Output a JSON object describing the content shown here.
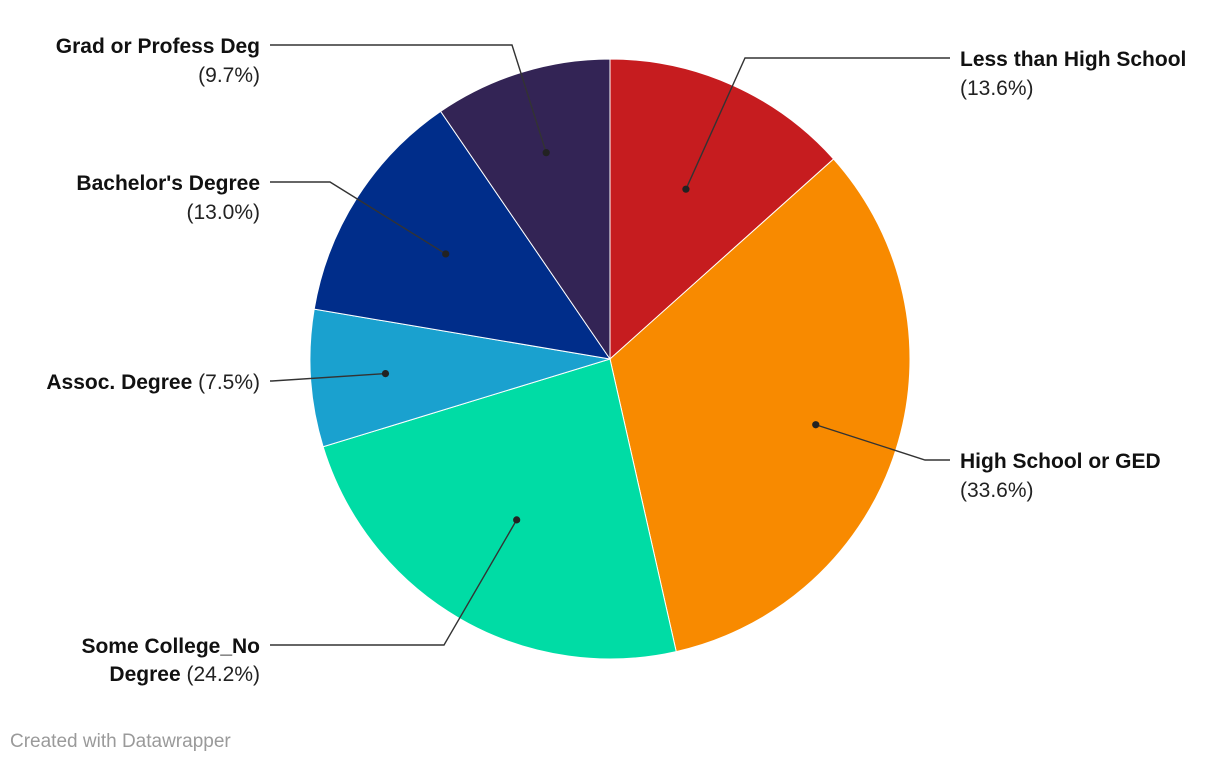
{
  "chart_data": {
    "type": "pie",
    "start_angle_deg": 0,
    "direction": "clockwise",
    "slices": [
      {
        "label": "Less than High School",
        "value": 13.6,
        "pct_text": "(13.6%)",
        "color": "#c61c1f"
      },
      {
        "label": "High School or GED",
        "value": 33.6,
        "pct_text": "(33.6%)",
        "color": "#f88a00"
      },
      {
        "label": "Some College_No Degree",
        "value": 24.2,
        "pct_text": "(24.2%)",
        "color": "#00dca5"
      },
      {
        "label": "Assoc. Degree",
        "value": 7.5,
        "pct_text": "(7.5%)",
        "color": "#1aa1cf"
      },
      {
        "label": "Bachelor's Degree",
        "value": 13.0,
        "pct_text": "(13.0%)",
        "color": "#002d8a"
      },
      {
        "label": "Grad or Profess Deg",
        "value": 9.7,
        "pct_text": "(9.7%)",
        "color": "#332455"
      }
    ]
  },
  "footer": {
    "credit": "Created with Datawrapper"
  }
}
